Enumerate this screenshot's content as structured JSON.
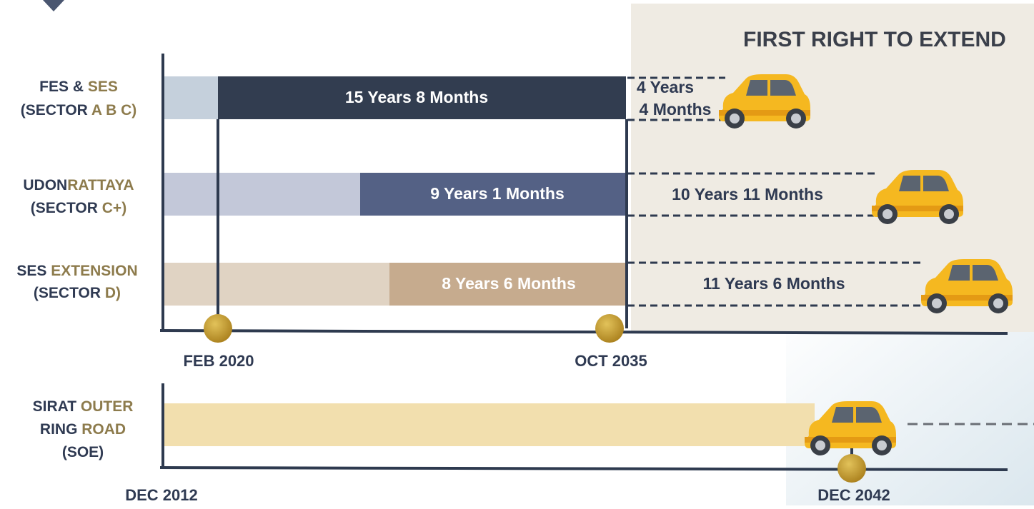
{
  "title": "FIRST RIGHT TO EXTEND",
  "rows": [
    {
      "label": [
        [
          "FES & ",
          "SES"
        ],
        [
          "(SECTOR ",
          "A B C)"
        ]
      ],
      "duration": "15 Years 8 Months",
      "extension": [
        "4 Years",
        "4 Months"
      ]
    },
    {
      "label": [
        [
          "UDON",
          "RATTAYA"
        ],
        [
          "(SECTOR ",
          "C+)"
        ]
      ],
      "duration": "9 Years 1 Months",
      "extension": [
        "10 Years 11 Months"
      ]
    },
    {
      "label": [
        [
          "SES ",
          "EXTENSION"
        ],
        [
          "(SECTOR ",
          "D)"
        ]
      ],
      "duration": "8 Years 6 Months",
      "extension": [
        "11 Years 6 Months"
      ]
    }
  ],
  "dates": {
    "start": "FEB 2020",
    "end": "OCT 2035"
  },
  "soe": {
    "label": [
      [
        "SIRAT ",
        "OUTER"
      ],
      [
        "RING ",
        "ROAD"
      ],
      [
        "(SOE)"
      ]
    ],
    "start": "DEC 2012",
    "end": "DEC 2042"
  }
}
